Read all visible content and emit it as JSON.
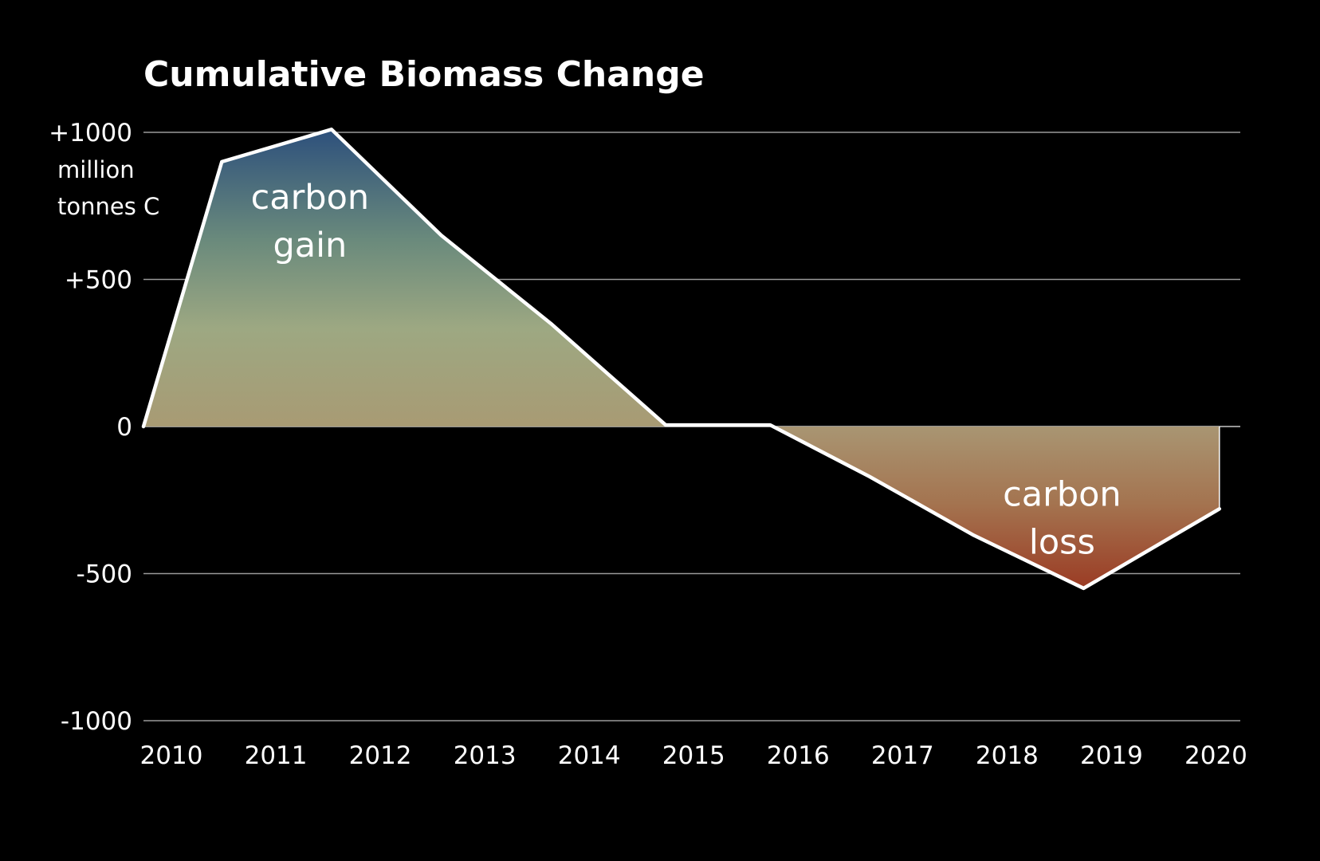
{
  "chart_data": {
    "type": "area",
    "title": "Cumulative Biomass Change",
    "y_unit_lines": [
      "million",
      "tonnes C"
    ],
    "ylim": [
      -1000,
      1000
    ],
    "y_ticks": [
      {
        "value": 1000,
        "label": "+1000"
      },
      {
        "value": 500,
        "label": "+500"
      },
      {
        "value": 0,
        "label": "0"
      },
      {
        "value": -500,
        "label": "-500"
      },
      {
        "value": -1000,
        "label": "-1000"
      }
    ],
    "xlim": [
      2010,
      2020.3
    ],
    "x_ticks": [
      2010,
      2011,
      2012,
      2013,
      2014,
      2015,
      2016,
      2017,
      2018,
      2019,
      2020
    ],
    "x_tick_labels": [
      "2010",
      "2011",
      "2012",
      "2013",
      "2014",
      "2015",
      "2016",
      "2017",
      "2018",
      "2019",
      "2020"
    ],
    "grid": true,
    "series": [
      {
        "x": [
          2010.0,
          2010.75,
          2011.8,
          2012.85,
          2013.9,
          2015.0,
          2016.0,
          2016.95,
          2017.95,
          2019.0,
          2020.3
        ],
        "y": [
          0,
          900,
          1010,
          650,
          350,
          5,
          5,
          -170,
          -370,
          -550,
          -280
        ]
      }
    ],
    "annotations": [
      {
        "lines": [
          "carbon",
          "gain"
        ],
        "x": 2011.8,
        "y": 740
      },
      {
        "lines": [
          "carbon",
          "loss"
        ],
        "x": 2019.0,
        "y": -270
      }
    ],
    "colors": {
      "background": "#000000",
      "gain_top": "#2c4f7c",
      "gain_mid": "#6a8a7c",
      "gain_light": "#9da882",
      "gain_zero": "#a89b74",
      "loss_zero": "#a99774",
      "loss_mid": "#a4734f",
      "loss_bottom": "#9b3d25",
      "line": "#ffffff"
    }
  }
}
